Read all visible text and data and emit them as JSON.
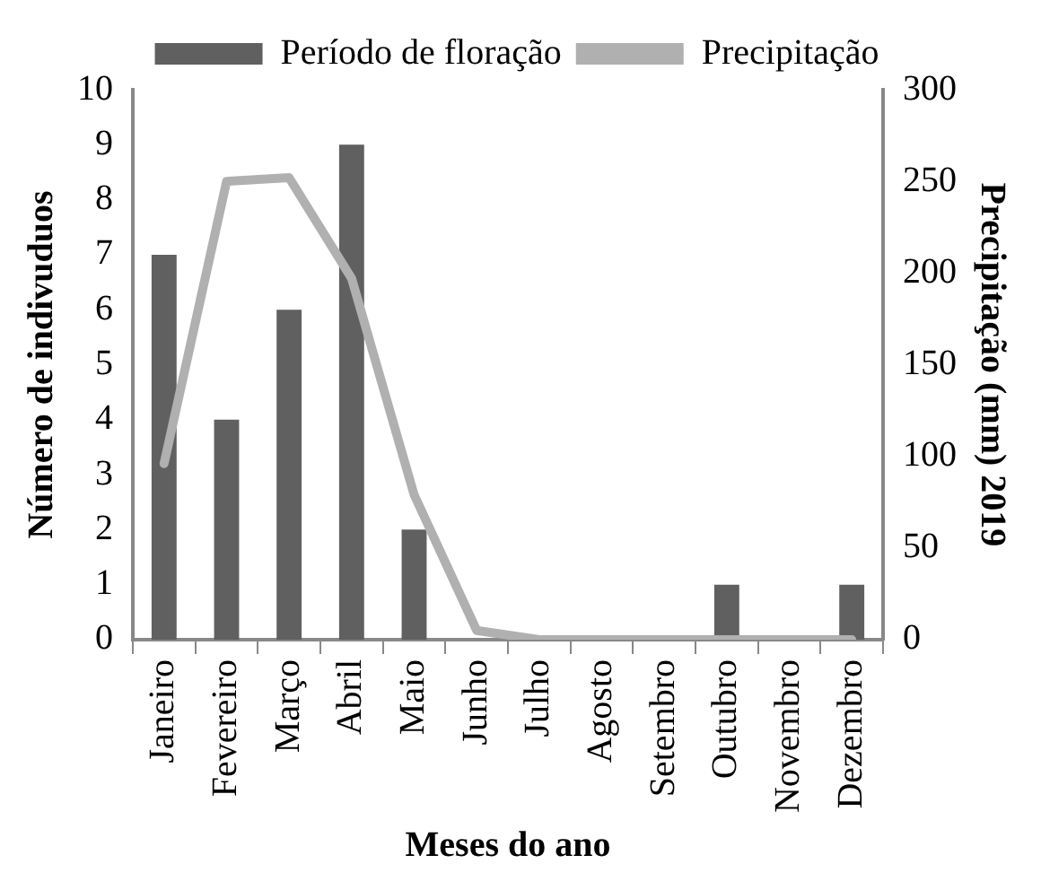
{
  "chart_data": {
    "type": "bar",
    "xlabel": "Meses do ano",
    "ylabel": "Número de indivuduos",
    "y2label": "Precipitação (mm) 2019",
    "categories": [
      "Janeiro",
      "Fevereiro",
      "Março",
      "Abril",
      "Maio",
      "Junho",
      "Julho",
      "Agosto",
      "Setembro",
      "Outubro",
      "Novembro",
      "Dezembro"
    ],
    "series": [
      {
        "name": "Período de floração",
        "color": "#606060",
        "values": [
          7,
          4,
          6,
          9,
          2,
          0,
          0,
          0,
          0,
          1,
          0,
          1
        ]
      },
      {
        "name": "Precipitação",
        "type": "line",
        "axis": "y2",
        "color": "#b0b0b0",
        "values": [
          96,
          250,
          252,
          197,
          79,
          5,
          0,
          0,
          0,
          0,
          0,
          0
        ]
      }
    ],
    "ylim": [
      0,
      10
    ],
    "yticks": [
      0,
      1,
      2,
      3,
      4,
      5,
      6,
      7,
      8,
      9,
      10
    ],
    "y2lim": [
      0,
      300
    ],
    "y2ticks": [
      0,
      50,
      100,
      150,
      200,
      250,
      300
    ],
    "grid": false,
    "legend": "top",
    "marker": "none"
  }
}
